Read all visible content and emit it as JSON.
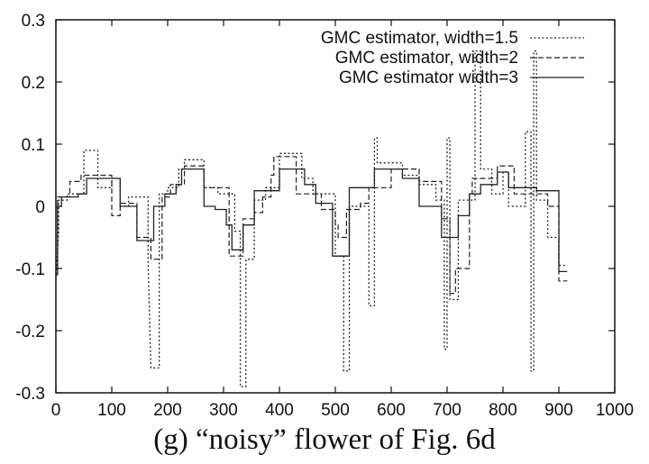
{
  "caption": "(g) “noisy” flower of Fig. 6d",
  "chart_data": {
    "type": "line",
    "title": "",
    "xlabel": "",
    "ylabel": "",
    "xlim": [
      0,
      1000
    ],
    "ylim": [
      -0.3,
      0.3
    ],
    "xticks": [
      0,
      100,
      200,
      300,
      400,
      500,
      600,
      700,
      800,
      900,
      1000
    ],
    "xtick_labels": [
      "0",
      "100",
      "200",
      "300",
      "400",
      "500",
      "600",
      "700",
      "800",
      "900",
      "1000"
    ],
    "yticks": [
      -0.3,
      -0.2,
      -0.1,
      0,
      0.1,
      0.2,
      0.3
    ],
    "ytick_labels": [
      "-0.3",
      "-0.2",
      "-0.1",
      "0",
      "0.1",
      "0.2",
      "0.3"
    ],
    "grid": false,
    "legend_position": "top-right",
    "series": [
      {
        "name": "GMC estimator, width=1.5",
        "style": "dotted",
        "points": [
          [
            0,
            -0.115
          ],
          [
            5,
            -0.04
          ],
          [
            5,
            0.01
          ],
          [
            20,
            0.01
          ],
          [
            20,
            0.02
          ],
          [
            50,
            0.02
          ],
          [
            50,
            0.09
          ],
          [
            75,
            0.09
          ],
          [
            75,
            0.03
          ],
          [
            100,
            0.03
          ],
          [
            100,
            0.045
          ],
          [
            115,
            0.045
          ],
          [
            115,
            0.0
          ],
          [
            130,
            0.0
          ],
          [
            130,
            0.015
          ],
          [
            165,
            0.015
          ],
          [
            165,
            -0.09
          ],
          [
            170,
            -0.26
          ],
          [
            185,
            -0.26
          ],
          [
            185,
            0.02
          ],
          [
            200,
            0.02
          ],
          [
            200,
            0.03
          ],
          [
            220,
            0.03
          ],
          [
            220,
            0.06
          ],
          [
            230,
            0.06
          ],
          [
            230,
            0.075
          ],
          [
            265,
            0.075
          ],
          [
            265,
            0.03
          ],
          [
            290,
            0.03
          ],
          [
            290,
            0.02
          ],
          [
            320,
            0.02
          ],
          [
            320,
            -0.04
          ],
          [
            330,
            -0.04
          ],
          [
            330,
            -0.29
          ],
          [
            340,
            -0.29
          ],
          [
            340,
            -0.085
          ],
          [
            355,
            -0.085
          ],
          [
            355,
            0.01
          ],
          [
            375,
            0.01
          ],
          [
            375,
            0.03
          ],
          [
            400,
            0.03
          ],
          [
            400,
            0.085
          ],
          [
            440,
            0.085
          ],
          [
            440,
            0.045
          ],
          [
            460,
            0.045
          ],
          [
            460,
            0.02
          ],
          [
            500,
            0.02
          ],
          [
            500,
            -0.08
          ],
          [
            515,
            -0.08
          ],
          [
            515,
            -0.265
          ],
          [
            525,
            -0.265
          ],
          [
            525,
            0.0
          ],
          [
            560,
            0.0
          ],
          [
            560,
            -0.16
          ],
          [
            570,
            -0.16
          ],
          [
            570,
            0.11
          ],
          [
            575,
            0.11
          ],
          [
            575,
            0.07
          ],
          [
            620,
            0.07
          ],
          [
            620,
            0.05
          ],
          [
            650,
            0.05
          ],
          [
            650,
            0.035
          ],
          [
            680,
            0.035
          ],
          [
            680,
            0.01
          ],
          [
            695,
            0.01
          ],
          [
            695,
            -0.23
          ],
          [
            700,
            -0.23
          ],
          [
            700,
            0.11
          ],
          [
            705,
            0.11
          ],
          [
            705,
            -0.15
          ],
          [
            720,
            -0.15
          ],
          [
            720,
            0.01
          ],
          [
            750,
            0.01
          ],
          [
            750,
            0.25
          ],
          [
            760,
            0.25
          ],
          [
            760,
            0.06
          ],
          [
            780,
            0.06
          ],
          [
            780,
            0.02
          ],
          [
            800,
            0.02
          ],
          [
            800,
            0.055
          ],
          [
            810,
            0.055
          ],
          [
            810,
            0.0
          ],
          [
            840,
            0.0
          ],
          [
            840,
            0.12
          ],
          [
            850,
            0.12
          ],
          [
            850,
            -0.265
          ],
          [
            855,
            -0.265
          ],
          [
            855,
            0.25
          ],
          [
            860,
            0.25
          ],
          [
            860,
            0.01
          ],
          [
            880,
            0.01
          ],
          [
            880,
            -0.05
          ],
          [
            900,
            -0.05
          ],
          [
            900,
            -0.095
          ],
          [
            915,
            -0.095
          ]
        ]
      },
      {
        "name": "GMC estimator, width=2",
        "style": "dashed",
        "points": [
          [
            0,
            -0.1
          ],
          [
            3,
            -0.1
          ],
          [
            3,
            0.015
          ],
          [
            25,
            0.015
          ],
          [
            25,
            0.04
          ],
          [
            45,
            0.04
          ],
          [
            45,
            0.05
          ],
          [
            100,
            0.05
          ],
          [
            100,
            -0.015
          ],
          [
            115,
            -0.015
          ],
          [
            115,
            0.005
          ],
          [
            145,
            0.005
          ],
          [
            145,
            -0.05
          ],
          [
            170,
            -0.05
          ],
          [
            170,
            -0.085
          ],
          [
            190,
            -0.085
          ],
          [
            190,
            0.015
          ],
          [
            205,
            0.015
          ],
          [
            205,
            0.035
          ],
          [
            230,
            0.035
          ],
          [
            230,
            0.065
          ],
          [
            265,
            0.065
          ],
          [
            265,
            0.03
          ],
          [
            310,
            0.03
          ],
          [
            310,
            -0.08
          ],
          [
            335,
            -0.08
          ],
          [
            335,
            -0.02
          ],
          [
            355,
            -0.02
          ],
          [
            355,
            -0.01
          ],
          [
            370,
            -0.01
          ],
          [
            370,
            0.015
          ],
          [
            385,
            0.015
          ],
          [
            385,
            0.05
          ],
          [
            390,
            0.05
          ],
          [
            390,
            0.08
          ],
          [
            430,
            0.08
          ],
          [
            430,
            0.02
          ],
          [
            475,
            0.02
          ],
          [
            475,
            -0.005
          ],
          [
            500,
            -0.005
          ],
          [
            500,
            -0.03
          ],
          [
            505,
            -0.03
          ],
          [
            505,
            -0.05
          ],
          [
            520,
            -0.05
          ],
          [
            520,
            -0.005
          ],
          [
            545,
            -0.005
          ],
          [
            545,
            0.005
          ],
          [
            560,
            0.005
          ],
          [
            560,
            0.03
          ],
          [
            600,
            0.03
          ],
          [
            600,
            0.06
          ],
          [
            650,
            0.06
          ],
          [
            650,
            0.04
          ],
          [
            690,
            0.04
          ],
          [
            690,
            -0.02
          ],
          [
            705,
            -0.02
          ],
          [
            705,
            -0.14
          ],
          [
            715,
            -0.14
          ],
          [
            715,
            -0.1
          ],
          [
            740,
            -0.1
          ],
          [
            740,
            0.02
          ],
          [
            745,
            0.02
          ],
          [
            745,
            0.045
          ],
          [
            790,
            0.045
          ],
          [
            790,
            0.065
          ],
          [
            820,
            0.065
          ],
          [
            820,
            0.02
          ],
          [
            880,
            0.02
          ],
          [
            880,
            0.0
          ],
          [
            900,
            0.0
          ],
          [
            900,
            -0.12
          ],
          [
            915,
            -0.12
          ]
        ]
      },
      {
        "name": "GMC estimator width=3",
        "style": "solid",
        "points": [
          [
            0,
            -0.11
          ],
          [
            3,
            -0.11
          ],
          [
            3,
            0.0
          ],
          [
            10,
            0.0
          ],
          [
            10,
            0.015
          ],
          [
            40,
            0.015
          ],
          [
            40,
            0.02
          ],
          [
            55,
            0.02
          ],
          [
            55,
            0.045
          ],
          [
            115,
            0.045
          ],
          [
            115,
            0.0
          ],
          [
            145,
            0.0
          ],
          [
            145,
            -0.055
          ],
          [
            175,
            -0.055
          ],
          [
            175,
            0.0
          ],
          [
            195,
            0.0
          ],
          [
            195,
            0.02
          ],
          [
            215,
            0.02
          ],
          [
            215,
            0.035
          ],
          [
            225,
            0.035
          ],
          [
            225,
            0.06
          ],
          [
            265,
            0.06
          ],
          [
            265,
            0.0
          ],
          [
            285,
            0.0
          ],
          [
            285,
            -0.005
          ],
          [
            305,
            -0.005
          ],
          [
            305,
            -0.03
          ],
          [
            315,
            -0.03
          ],
          [
            315,
            -0.07
          ],
          [
            335,
            -0.07
          ],
          [
            335,
            -0.03
          ],
          [
            355,
            -0.03
          ],
          [
            355,
            0.025
          ],
          [
            400,
            0.025
          ],
          [
            400,
            0.06
          ],
          [
            445,
            0.06
          ],
          [
            445,
            0.035
          ],
          [
            465,
            0.035
          ],
          [
            465,
            0.005
          ],
          [
            495,
            0.005
          ],
          [
            495,
            -0.08
          ],
          [
            525,
            -0.08
          ],
          [
            525,
            0.03
          ],
          [
            570,
            0.03
          ],
          [
            570,
            0.06
          ],
          [
            620,
            0.06
          ],
          [
            620,
            0.045
          ],
          [
            650,
            0.045
          ],
          [
            650,
            0.0
          ],
          [
            690,
            0.0
          ],
          [
            690,
            -0.05
          ],
          [
            720,
            -0.05
          ],
          [
            720,
            -0.015
          ],
          [
            740,
            -0.015
          ],
          [
            740,
            0.02
          ],
          [
            760,
            0.02
          ],
          [
            760,
            0.035
          ],
          [
            790,
            0.035
          ],
          [
            790,
            0.055
          ],
          [
            810,
            0.055
          ],
          [
            810,
            0.03
          ],
          [
            860,
            0.03
          ],
          [
            860,
            0.025
          ],
          [
            900,
            0.025
          ],
          [
            900,
            -0.105
          ],
          [
            915,
            -0.105
          ]
        ]
      }
    ]
  }
}
